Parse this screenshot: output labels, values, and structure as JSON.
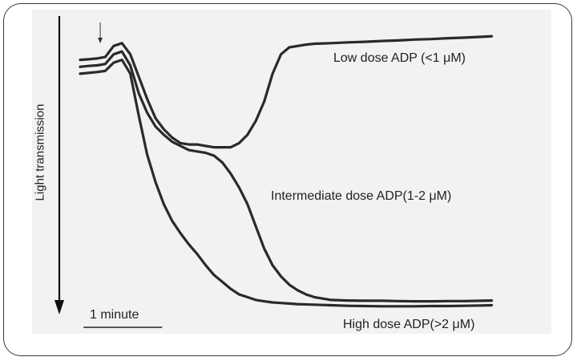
{
  "chart_data": {
    "type": "line",
    "title": "",
    "xlabel": "",
    "ylabel": "Light transmission",
    "grid": false,
    "legend": "none",
    "scale_bar": {
      "label": "1 minute",
      "length_min": 1
    },
    "x_unit": "minutes",
    "xlim": [
      0,
      2.5
    ],
    "ylim": [
      0,
      100
    ],
    "agonist_marker_x": 0.12,
    "series": [
      {
        "name": "Low dose ADP (<1 μM)",
        "x": [
          0,
          0.05,
          0.1,
          0.15,
          0.2,
          0.25,
          0.3,
          0.35,
          0.4,
          0.45,
          0.5,
          0.55,
          0.6,
          0.65,
          0.7,
          0.75,
          0.8,
          0.85,
          0.9,
          0.95,
          1.0,
          1.05,
          1.1,
          1.15,
          1.2,
          1.25,
          1.3,
          1.35,
          1.4,
          1.5,
          1.6,
          1.7,
          1.8,
          1.9,
          2.0,
          2.1,
          2.2,
          2.3,
          2.4,
          2.46
        ],
        "y": [
          90,
          90.2,
          90.5,
          91,
          95,
          96,
          92,
          84,
          76,
          69,
          65,
          62,
          60,
          59.5,
          59.5,
          59,
          58.5,
          58.5,
          58.5,
          60,
          63,
          68,
          75,
          85,
          92,
          94.5,
          95,
          95.5,
          95.8,
          96,
          96.3,
          96.5,
          96.8,
          97,
          97.3,
          97.5,
          97.8,
          98,
          98.3,
          98.5
        ]
      },
      {
        "name": "Intermediate dose ADP(1-2  μM)",
        "x": [
          0,
          0.05,
          0.1,
          0.15,
          0.2,
          0.25,
          0.3,
          0.35,
          0.4,
          0.45,
          0.5,
          0.55,
          0.6,
          0.65,
          0.7,
          0.75,
          0.8,
          0.85,
          0.9,
          0.95,
          1.0,
          1.05,
          1.1,
          1.15,
          1.2,
          1.25,
          1.3,
          1.35,
          1.4,
          1.45,
          1.5,
          1.6,
          1.7,
          1.8,
          1.9,
          2.0,
          2.1,
          2.2,
          2.3,
          2.4,
          2.46
        ],
        "y": [
          87.5,
          87.8,
          88,
          88.5,
          92,
          93,
          88,
          78,
          71,
          66,
          63,
          60.5,
          59,
          57.5,
          57,
          56.5,
          55.5,
          53,
          49,
          44,
          38,
          30,
          22,
          16,
          12,
          9,
          7,
          5.5,
          4.5,
          4,
          3.5,
          3.3,
          3.2,
          3.2,
          3.1,
          3.0,
          3.0,
          3.1,
          3.1,
          3.2,
          3.3
        ]
      },
      {
        "name": "High  dose ADP(>2 μM)",
        "x": [
          0,
          0.05,
          0.1,
          0.15,
          0.2,
          0.25,
          0.3,
          0.35,
          0.4,
          0.45,
          0.5,
          0.55,
          0.6,
          0.65,
          0.7,
          0.75,
          0.8,
          0.85,
          0.9,
          0.95,
          1.0,
          1.05,
          1.1,
          1.15,
          1.2,
          1.25,
          1.3,
          1.4,
          1.5,
          1.6,
          1.7,
          1.8,
          1.9,
          2.0,
          2.1,
          2.2,
          2.3,
          2.4,
          2.46
        ],
        "y": [
          85,
          85.3,
          85.6,
          86,
          89,
          90,
          85,
          70,
          56,
          46,
          38,
          32,
          27.5,
          23.5,
          20,
          16,
          12.5,
          10,
          7.5,
          5.5,
          4.5,
          3.5,
          3,
          2.6,
          2.4,
          2.2,
          2.0,
          1.8,
          1.6,
          1.4,
          1.3,
          1.2,
          1.2,
          1.2,
          1.3,
          1.3,
          1.4,
          1.5,
          1.6
        ]
      }
    ]
  },
  "labels": {
    "ylabel": "Light transmission",
    "low": "Low dose ADP (<1 μM)",
    "intermediate": "Intermediate dose ADP(1-2  μM)",
    "high": "High  dose ADP(>2 μM)",
    "scale": "1 minute"
  }
}
